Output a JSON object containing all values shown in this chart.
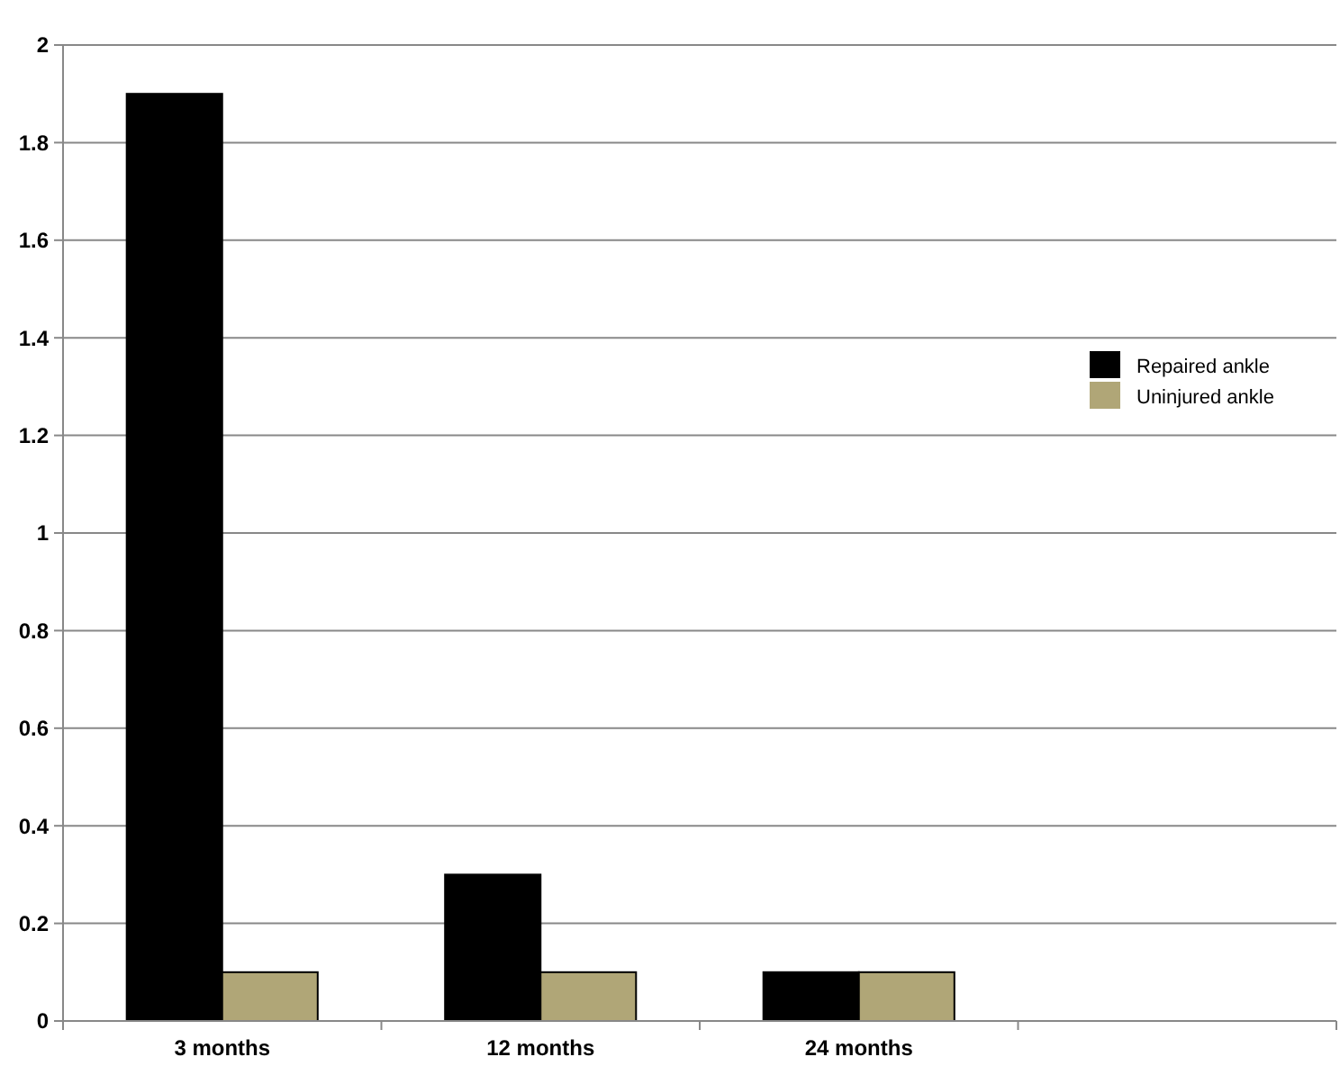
{
  "chart_data": {
    "type": "bar",
    "categories": [
      "3 months",
      "12 months",
      "24 months",
      null
    ],
    "series": [
      {
        "name": "Repaired ankle",
        "color": "#000000",
        "values": [
          1.9,
          0.3,
          0.1,
          null
        ]
      },
      {
        "name": "Uninjured ankle",
        "color": "#b0a677",
        "values": [
          0.1,
          0.1,
          0.1,
          null
        ]
      }
    ],
    "ylim": [
      0,
      2
    ],
    "yticks": [
      0,
      0.2,
      0.4,
      0.6,
      0.8,
      1,
      1.2,
      1.4,
      1.6,
      1.8,
      2
    ],
    "grid": "y",
    "legend": "right"
  }
}
